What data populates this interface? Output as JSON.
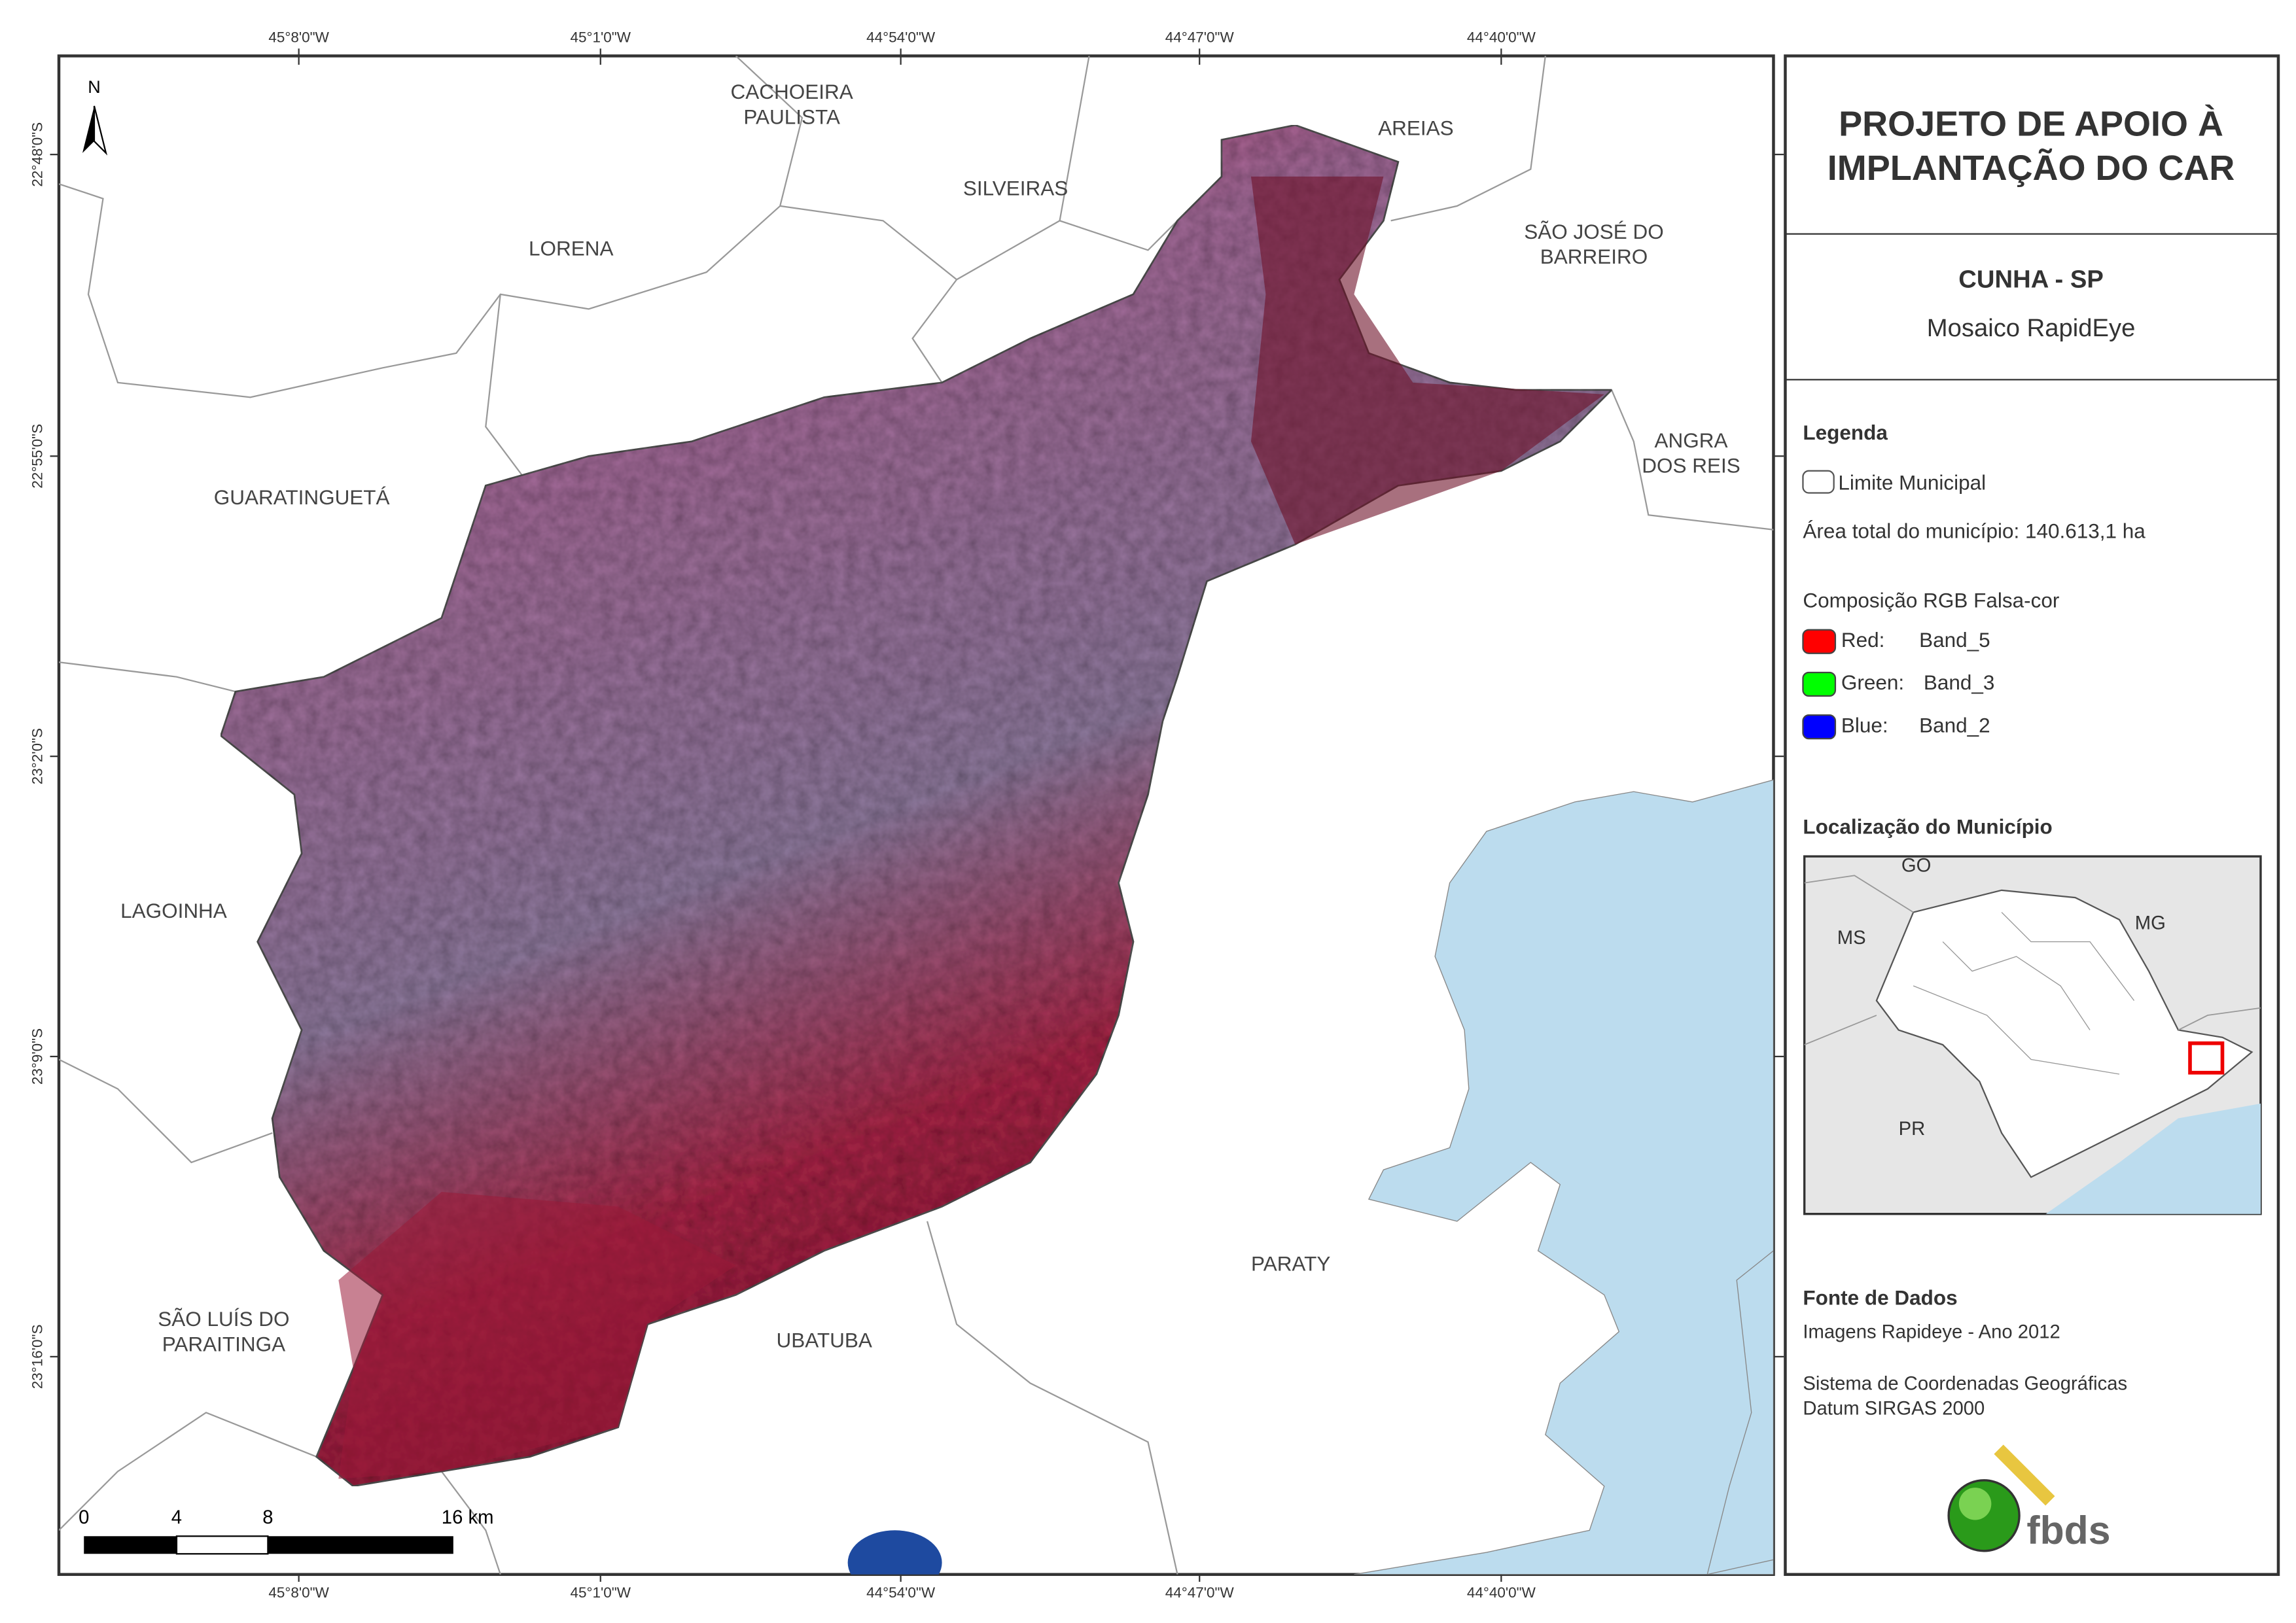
{
  "map": {
    "north_label": "N",
    "place_labels": [
      {
        "lines": [
          "CACHOEIRA",
          "PAULISTA"
        ]
      },
      {
        "lines": [
          "AREIAS"
        ]
      },
      {
        "lines": [
          "SILVEIRAS"
        ]
      },
      {
        "lines": [
          "LORENA"
        ]
      },
      {
        "lines": [
          "SÃO JOSÉ DO",
          "BARREIRO"
        ]
      },
      {
        "lines": [
          "ANGRA",
          "DOS REIS"
        ]
      },
      {
        "lines": [
          "GUARATINGUETÁ"
        ]
      },
      {
        "lines": [
          "LAGOINHA"
        ]
      },
      {
        "lines": [
          "PARATY"
        ]
      },
      {
        "lines": [
          "SÃO LUÍS DO",
          "PARAITINGA"
        ]
      },
      {
        "lines": [
          "UBATUBA"
        ]
      }
    ],
    "lon_ticks": [
      "45°8'0\"W",
      "45°1'0\"W",
      "44°54'0\"W",
      "44°47'0\"W",
      "44°40'0\"W"
    ],
    "lat_ticks": [
      "22°48'0\"S",
      "22°55'0\"S",
      "23°2'0\"S",
      "23°9'0\"S",
      "23°16'0\"S"
    ],
    "scale_bar": {
      "labels": [
        "0",
        "4",
        "8",
        "16 km"
      ]
    }
  },
  "panel": {
    "title": [
      "PROJETO DE APOIO À",
      "IMPLANTAÇÃO DO CAR"
    ],
    "municipality": "CUNHA - SP",
    "mosaic": "Mosaico RapidEye",
    "legend": {
      "heading": "Legenda",
      "boundary": "Limite Municipal",
      "area": "Área total do município: 140.613,1 ha",
      "composition": "Composição RGB Falsa-cor",
      "bands": [
        {
          "channel": "Red:",
          "band": "Band_5",
          "color": "#ff0000"
        },
        {
          "channel": "Green:",
          "band": "Band_3",
          "color": "#00ff00"
        },
        {
          "channel": "Blue:",
          "band": "Band_2",
          "color": "#0000ff"
        }
      ]
    },
    "location": {
      "heading": "Localização do Município",
      "labels": [
        "GO",
        "MS",
        "MG",
        "PR"
      ]
    },
    "sources": {
      "heading": "Fonte de Dados",
      "lines": [
        "Imagens Rapideye - Ano 2012",
        "Sistema de Coordenadas Geográficas",
        "Datum SIRGAS 2000"
      ]
    },
    "logo": "fbds"
  }
}
